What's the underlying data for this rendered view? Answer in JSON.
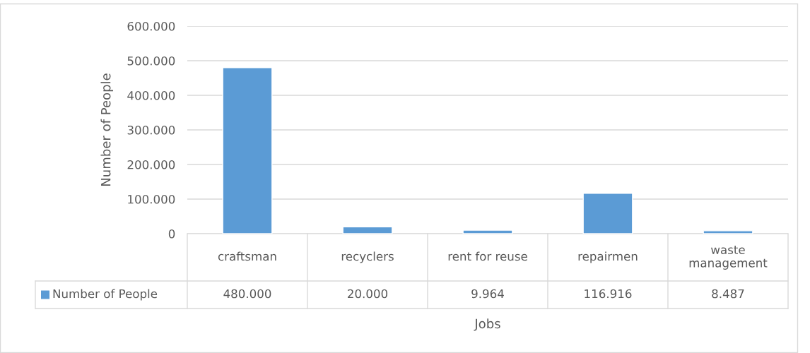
{
  "chart_data": {
    "type": "bar",
    "xlabel": "Jobs",
    "ylabel": "Number of People",
    "categories": [
      "craftsman",
      "recyclers",
      "rent for reuse",
      "repairmen",
      "waste management"
    ],
    "series": [
      {
        "name": "Number of People",
        "color": "#5b9bd5",
        "values": [
          480000,
          20000,
          9964,
          116916,
          8487
        ],
        "value_labels": [
          "480.000",
          "20.000",
          "9.964",
          "116.916",
          "8.487"
        ]
      }
    ],
    "ylim": [
      0,
      600000
    ],
    "yticks": [
      0,
      {
        "value": 100000,
        "label": "100.000"
      },
      {
        "value": 200000,
        "label": "200.000"
      },
      {
        "value": 300000,
        "label": "300.000"
      },
      {
        "value": 400000,
        "label": "400.000"
      },
      {
        "value": 500000,
        "label": "500.000"
      },
      {
        "value": 600000,
        "label": "600.000"
      }
    ],
    "grid": "y"
  }
}
